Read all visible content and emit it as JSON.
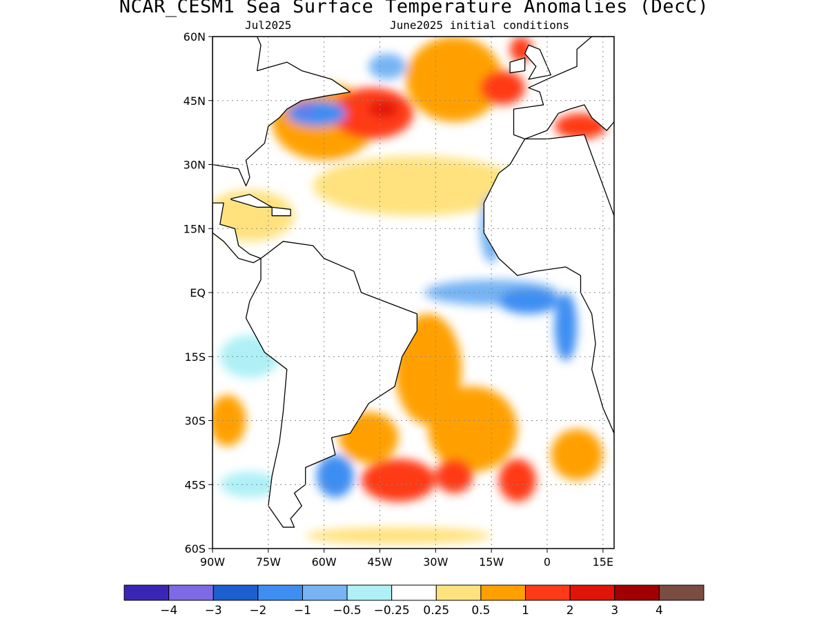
{
  "header": {
    "title": "NCAR_CESM1 Sea Surface Temperature Anomalies (DecC)",
    "valid_month": "Jul2025",
    "init_conditions": "June2025 initial conditions"
  },
  "map": {
    "lon_range": [
      -90,
      18
    ],
    "lat_range": [
      -60,
      60
    ],
    "lat_ticks": [
      {
        "value": 60,
        "label": "60N"
      },
      {
        "value": 45,
        "label": "45N"
      },
      {
        "value": 30,
        "label": "30N"
      },
      {
        "value": 15,
        "label": "15N"
      },
      {
        "value": 0,
        "label": "EQ"
      },
      {
        "value": -15,
        "label": "15S"
      },
      {
        "value": -30,
        "label": "30S"
      },
      {
        "value": -45,
        "label": "45S"
      },
      {
        "value": -60,
        "label": "60S"
      }
    ],
    "lon_ticks": [
      {
        "value": -90,
        "label": "90W"
      },
      {
        "value": -75,
        "label": "75W"
      },
      {
        "value": -60,
        "label": "60W"
      },
      {
        "value": -45,
        "label": "45W"
      },
      {
        "value": -30,
        "label": "30W"
      },
      {
        "value": -15,
        "label": "15W"
      },
      {
        "value": 0,
        "label": "0"
      },
      {
        "value": 15,
        "label": "15E"
      }
    ],
    "land_color": "#ffffff",
    "coast_color": "#000000",
    "grid_style": "dotted"
  },
  "colorbar": {
    "colors": [
      "#3a26b4",
      "#7f6ae6",
      "#1c5fce",
      "#3e8ef2",
      "#76b4f4",
      "#aef0f6",
      "#ffffff",
      "#ffe27e",
      "#ffa000",
      "#ff3a18",
      "#e01408",
      "#a20000",
      "#7a4c42"
    ],
    "labels": [
      "−4",
      "−3",
      "−2",
      "−1",
      "−0.5",
      "−0.25",
      "0.25",
      "0.5",
      "1",
      "2",
      "3",
      "4"
    ]
  },
  "anomalies": [
    {
      "lon": -60,
      "lat": 40,
      "value": 0.8,
      "rx": 14,
      "ry": 9
    },
    {
      "lon": -47,
      "lat": 42,
      "value": 1.2,
      "rx": 11,
      "ry": 6
    },
    {
      "lon": -44,
      "lat": 43,
      "value": 2.2,
      "rx": 4,
      "ry": 2
    },
    {
      "lon": -25,
      "lat": 50,
      "value": 0.8,
      "rx": 13,
      "ry": 10
    },
    {
      "lon": -12,
      "lat": 48,
      "value": 1.3,
      "rx": 6,
      "ry": 4
    },
    {
      "lon": -7,
      "lat": 57,
      "value": 1.2,
      "rx": 3,
      "ry": 3
    },
    {
      "lon": 9,
      "lat": 39,
      "value": 1.3,
      "rx": 7,
      "ry": 3
    },
    {
      "lon": -62,
      "lat": 42,
      "value": -1.5,
      "rx": 8,
      "ry": 3
    },
    {
      "lon": -65,
      "lat": 43,
      "value": -3.2,
      "rx": 2,
      "ry": 1
    },
    {
      "lon": -43,
      "lat": 53,
      "value": -1.0,
      "rx": 5,
      "ry": 3
    },
    {
      "lon": -35,
      "lat": 25,
      "value": 0.4,
      "rx": 28,
      "ry": 7
    },
    {
      "lon": -80,
      "lat": 18,
      "value": 0.4,
      "rx": 12,
      "ry": 6
    },
    {
      "lon": -15,
      "lat": 15,
      "value": -0.8,
      "rx": 3,
      "ry": 8
    },
    {
      "lon": -15,
      "lat": 0,
      "value": -1.0,
      "rx": 18,
      "ry": 3
    },
    {
      "lon": -5,
      "lat": -2,
      "value": -1.4,
      "rx": 8,
      "ry": 3
    },
    {
      "lon": 5,
      "lat": -8,
      "value": -1.2,
      "rx": 3,
      "ry": 8
    },
    {
      "lon": -32,
      "lat": -18,
      "value": 0.7,
      "rx": 9,
      "ry": 13
    },
    {
      "lon": -20,
      "lat": -32,
      "value": 0.7,
      "rx": 12,
      "ry": 10
    },
    {
      "lon": -48,
      "lat": -34,
      "value": 0.8,
      "rx": 8,
      "ry": 6
    },
    {
      "lon": -40,
      "lat": -44,
      "value": 1.3,
      "rx": 10,
      "ry": 5
    },
    {
      "lon": -25,
      "lat": -43,
      "value": 1.3,
      "rx": 5,
      "ry": 4
    },
    {
      "lon": -8,
      "lat": -44,
      "value": 1.6,
      "rx": 5,
      "ry": 5
    },
    {
      "lon": 8,
      "lat": -38,
      "value": 0.6,
      "rx": 7,
      "ry": 6
    },
    {
      "lon": -57,
      "lat": -43,
      "value": -1.2,
      "rx": 5,
      "ry": 5
    },
    {
      "lon": -80,
      "lat": -15,
      "value": -0.5,
      "rx": 8,
      "ry": 5
    },
    {
      "lon": -80,
      "lat": -45,
      "value": -0.3,
      "rx": 8,
      "ry": 3
    },
    {
      "lon": -86,
      "lat": -30,
      "value": 0.8,
      "rx": 5,
      "ry": 6
    },
    {
      "lon": -40,
      "lat": -57,
      "value": 0.4,
      "rx": 25,
      "ry": 2
    }
  ],
  "land": [
    {
      "name": "north-america",
      "coords": [
        [
          -90,
          60
        ],
        [
          -78,
          60
        ],
        [
          -77,
          58
        ],
        [
          -78,
          52
        ],
        [
          -70,
          54
        ],
        [
          -66,
          52
        ],
        [
          -58,
          50
        ],
        [
          -53,
          47
        ],
        [
          -60,
          46
        ],
        [
          -66,
          45
        ],
        [
          -70,
          43
        ],
        [
          -72,
          41
        ],
        [
          -75,
          39
        ],
        [
          -76,
          35
        ],
        [
          -81,
          31
        ],
        [
          -80,
          27
        ],
        [
          -81,
          25
        ],
        [
          -83,
          29
        ],
        [
          -90,
          30
        ]
      ]
    },
    {
      "name": "greenland",
      "coords": [
        [
          -55,
          60
        ],
        [
          -45,
          60
        ],
        [
          -44,
          61
        ],
        [
          -56,
          61
        ]
      ]
    },
    {
      "name": "central-america",
      "coords": [
        [
          -90,
          21
        ],
        [
          -87,
          21
        ],
        [
          -88,
          16
        ],
        [
          -84,
          15
        ],
        [
          -83,
          11
        ],
        [
          -80,
          9
        ],
        [
          -77,
          8
        ],
        [
          -79,
          7
        ],
        [
          -83,
          8
        ],
        [
          -87,
          12
        ],
        [
          -90,
          14
        ]
      ]
    },
    {
      "name": "cuba",
      "coords": [
        [
          -85,
          22
        ],
        [
          -80,
          23
        ],
        [
          -74,
          20
        ],
        [
          -78,
          20
        ],
        [
          -85,
          21.8
        ]
      ]
    },
    {
      "name": "hispaniola",
      "coords": [
        [
          -74,
          20
        ],
        [
          -69,
          19.5
        ],
        [
          -69,
          18
        ],
        [
          -74,
          18
        ]
      ]
    },
    {
      "name": "south-america",
      "coords": [
        [
          -77,
          8
        ],
        [
          -71,
          12
        ],
        [
          -63,
          11
        ],
        [
          -60,
          8
        ],
        [
          -52,
          5
        ],
        [
          -50,
          0
        ],
        [
          -44,
          -2
        ],
        [
          -35,
          -5
        ],
        [
          -35,
          -9
        ],
        [
          -39,
          -15
        ],
        [
          -41,
          -22
        ],
        [
          -48,
          -26
        ],
        [
          -53,
          -33
        ],
        [
          -58,
          -34
        ],
        [
          -57,
          -38
        ],
        [
          -65,
          -41
        ],
        [
          -65,
          -45
        ],
        [
          -68,
          -47
        ],
        [
          -66,
          -50
        ],
        [
          -69,
          -53
        ],
        [
          -68,
          -55
        ],
        [
          -71,
          -55
        ],
        [
          -75,
          -50
        ],
        [
          -74,
          -43
        ],
        [
          -72,
          -35
        ],
        [
          -71,
          -28
        ],
        [
          -70,
          -18
        ],
        [
          -76,
          -14
        ],
        [
          -81,
          -6
        ],
        [
          -80,
          -2
        ],
        [
          -77,
          3
        ]
      ]
    },
    {
      "name": "europe",
      "coords": [
        [
          -9,
          43
        ],
        [
          -9,
          37
        ],
        [
          -6,
          36
        ],
        [
          0,
          38
        ],
        [
          3,
          42
        ],
        [
          6,
          43
        ],
        [
          10,
          44
        ],
        [
          12,
          41
        ],
        [
          16,
          38
        ],
        [
          18,
          40
        ],
        [
          18,
          60
        ],
        [
          12,
          60
        ],
        [
          8,
          57
        ],
        [
          8,
          53
        ],
        [
          0,
          50
        ],
        [
          -5,
          48
        ],
        [
          -2,
          47
        ],
        [
          -1,
          44
        ]
      ]
    },
    {
      "name": "britain",
      "coords": [
        [
          -5,
          58
        ],
        [
          -2,
          57
        ],
        [
          0,
          53
        ],
        [
          1,
          51
        ],
        [
          -5,
          50
        ],
        [
          -3,
          53
        ],
        [
          -6,
          56
        ]
      ]
    },
    {
      "name": "ireland",
      "coords": [
        [
          -10,
          54
        ],
        [
          -6,
          55
        ],
        [
          -6,
          52
        ],
        [
          -10,
          51.5
        ]
      ]
    },
    {
      "name": "africa",
      "coords": [
        [
          -6,
          36
        ],
        [
          -10,
          30
        ],
        [
          -13,
          28
        ],
        [
          -17,
          21
        ],
        [
          -17,
          14
        ],
        [
          -15,
          11
        ],
        [
          -13,
          8
        ],
        [
          -8,
          4
        ],
        [
          -3,
          5
        ],
        [
          5,
          6
        ],
        [
          9,
          4
        ],
        [
          9,
          0
        ],
        [
          12,
          -5
        ],
        [
          13,
          -12
        ],
        [
          12,
          -18
        ],
        [
          15,
          -27
        ],
        [
          18,
          -33
        ],
        [
          18,
          18
        ],
        [
          10,
          37
        ],
        [
          0,
          36
        ]
      ]
    }
  ]
}
